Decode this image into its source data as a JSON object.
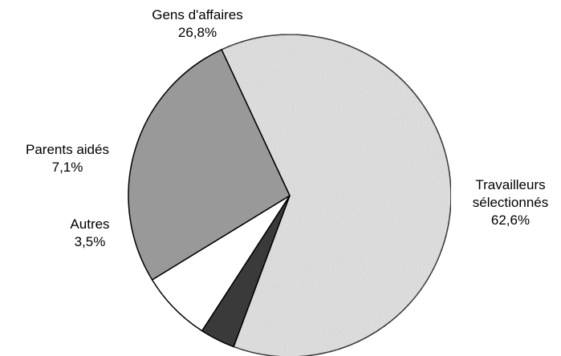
{
  "chart_data": {
    "type": "pie",
    "title": "",
    "slices": [
      {
        "label": "Travailleurs sélectionnés",
        "label_lines": [
          "Travailleurs",
          "sélectionnés"
        ],
        "value": 62.6,
        "value_label": "62,6%",
        "color": "#dedede"
      },
      {
        "label": "Autres",
        "label_lines": [
          "Autres"
        ],
        "value": 3.5,
        "value_label": "3,5%",
        "color": "#3a3a3a"
      },
      {
        "label": "Parents aidés",
        "label_lines": [
          "Parents aidés"
        ],
        "value": 7.1,
        "value_label": "7,1%",
        "color": "#ffffff"
      },
      {
        "label": "Gens d'affaires",
        "label_lines": [
          "Gens d'affaires"
        ],
        "value": 26.8,
        "value_label": "26,8%",
        "color": "#999999"
      }
    ],
    "legend": "none",
    "labels": "outside"
  }
}
